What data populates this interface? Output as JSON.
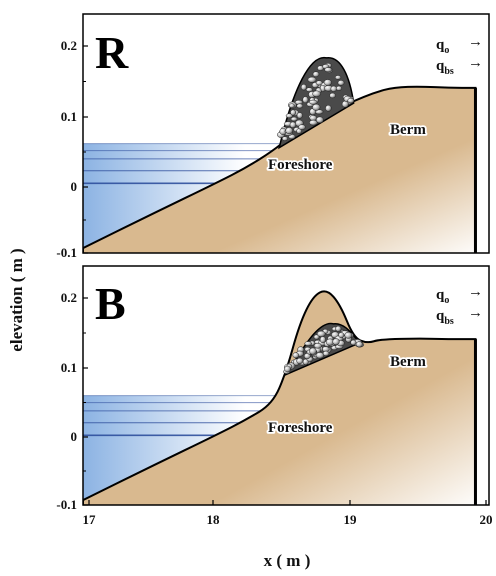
{
  "figure": {
    "xlabel": "x ( m )",
    "ylabel": "elevation ( m )",
    "x_ticks": [
      "17",
      "18",
      "19",
      "20"
    ],
    "y_ticks_top": [
      "0.2",
      "0.1",
      "0",
      "-0.1"
    ],
    "y_ticks_bottom": [
      "0.2",
      "0.1",
      "0",
      "-0.1"
    ],
    "colors": {
      "sand": "#d9b98f",
      "water_light": "#d6e6f7",
      "water_dark": "#6f9fd6",
      "water_line": "#2e4f9c",
      "gravel": "#8f8f8f"
    }
  },
  "panels": [
    {
      "letter": "R",
      "labels": {
        "berm": "Berm",
        "foreshore": "Foreshore"
      },
      "flux": {
        "q_main": "q",
        "q_o_sub": "o",
        "q_bs_sub": "bs",
        "arrow": "→"
      }
    },
    {
      "letter": "B",
      "labels": {
        "berm": "Berm",
        "foreshore": "Foreshore"
      },
      "flux": {
        "q_main": "q",
        "q_o_sub": "o",
        "q_bs_sub": "bs",
        "arrow": "→"
      }
    }
  ],
  "chart_data": {
    "type": "area",
    "xlabel": "x ( m )",
    "ylabel": "elevation ( m )",
    "xlim": [
      17,
      20
    ],
    "ylim": [
      -0.1,
      0.25
    ],
    "panels": [
      {
        "name": "R",
        "beach_profile": {
          "x": [
            17.0,
            17.5,
            18.0,
            18.2,
            18.4,
            18.55,
            18.7,
            18.85,
            19.0,
            19.15,
            19.3,
            19.5,
            19.7,
            19.9
          ],
          "y": [
            -0.093,
            -0.045,
            0.002,
            0.022,
            0.046,
            0.07,
            0.088,
            0.105,
            0.118,
            0.13,
            0.138,
            0.139,
            0.137,
            0.137
          ]
        },
        "gravel_deposit": {
          "x_start": 18.45,
          "x_peak": 18.8,
          "x_end": 19.0,
          "peak_elevation": 0.18
        },
        "water_levels": [
          0.057,
          0.047,
          0.035,
          0.018,
          0.0
        ]
      },
      {
        "name": "B",
        "beach_profile": {
          "x": [
            17.0,
            17.5,
            18.0,
            18.2,
            18.4,
            18.5,
            18.6,
            18.7,
            18.8,
            18.9,
            19.0,
            19.1,
            19.2,
            19.5,
            19.7,
            19.9
          ],
          "y": [
            -0.093,
            -0.045,
            0.002,
            0.022,
            0.045,
            0.09,
            0.16,
            0.2,
            0.21,
            0.188,
            0.14,
            0.132,
            0.138,
            0.139,
            0.138,
            0.138
          ]
        },
        "gravel_deposit": {
          "x_start": 18.5,
          "x_peak": 18.85,
          "x_end": 19.05,
          "peak_elevation": 0.16
        },
        "water_levels": [
          0.057,
          0.047,
          0.035,
          0.018,
          0.0
        ]
      }
    ]
  }
}
